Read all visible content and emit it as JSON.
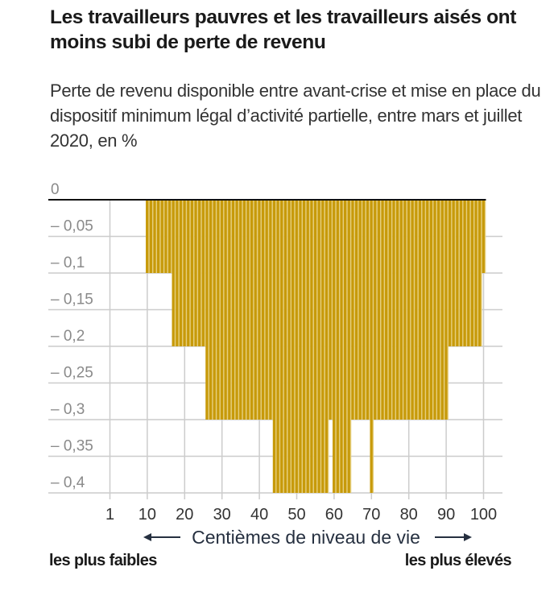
{
  "chart_data": {
    "type": "bar",
    "title": "Les travailleurs pauvres et les travailleurs aisés ont moins subi de perte de revenu",
    "subtitle": "Perte de revenu disponible entre avant-crise et mise en place du dispositif minimum légal d’activité partielle, entre mars et juillet 2020, en %",
    "xlabel": "Centièmes de niveau de vie",
    "xlabel_left": "les plus faibles",
    "xlabel_right": "les plus élevés",
    "ylabel": "",
    "ylim": [
      -0.4,
      0
    ],
    "xlim": [
      0,
      100
    ],
    "grid": true,
    "y_ticks": [
      0,
      -0.05,
      -0.1,
      -0.15,
      -0.2,
      -0.25,
      -0.3,
      -0.35,
      -0.4
    ],
    "y_tick_labels": [
      "0",
      "– 0,05",
      "– 0,1",
      "– 0,15",
      "– 0,2",
      "– 0,25",
      "– 0,3",
      "– 0,35",
      "– 0,4"
    ],
    "x_ticks": [
      0,
      10,
      20,
      30,
      40,
      50,
      60,
      70,
      80,
      90,
      100
    ],
    "x_tick_labels": [
      "1",
      "10",
      "20",
      "30",
      "40",
      "50",
      "60",
      "70",
      "80",
      "90",
      "100"
    ],
    "segments": [
      {
        "from": 1,
        "to": 9,
        "value": 0
      },
      {
        "from": 10,
        "to": 16,
        "value": -0.1
      },
      {
        "from": 17,
        "to": 25,
        "value": -0.2
      },
      {
        "from": 26,
        "to": 43,
        "value": -0.3
      },
      {
        "from": 44,
        "to": 58,
        "value": -0.4
      },
      {
        "from": 59,
        "to": 59,
        "value": -0.3
      },
      {
        "from": 60,
        "to": 64,
        "value": -0.4
      },
      {
        "from": 65,
        "to": 69,
        "value": -0.3
      },
      {
        "from": 70,
        "to": 70,
        "value": -0.4
      },
      {
        "from": 71,
        "to": 90,
        "value": -0.3
      },
      {
        "from": 91,
        "to": 99,
        "value": -0.2
      },
      {
        "from": 100,
        "to": 100,
        "value": -0.1
      }
    ],
    "bar_color": "#C79A0A",
    "bar_gap_color": "#E6CF7E"
  }
}
